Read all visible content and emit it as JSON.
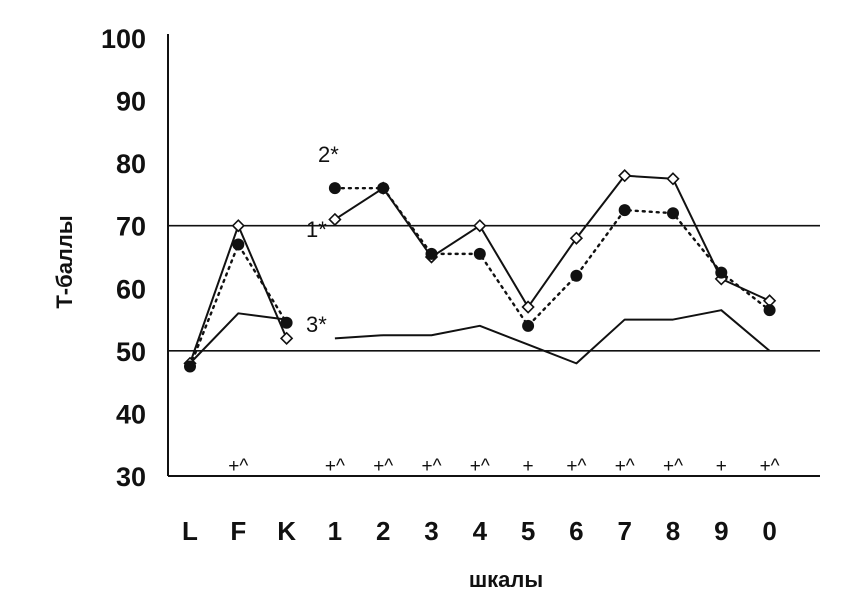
{
  "chart_data": {
    "type": "line",
    "title": "",
    "xlabel": "шкалы",
    "ylabel": "Т-баллы",
    "ylim": [
      30,
      100
    ],
    "yticks": [
      30,
      40,
      50,
      60,
      70,
      80,
      90,
      100
    ],
    "categories": [
      "L",
      "F",
      "K",
      "1",
      "2",
      "3",
      "4",
      "5",
      "6",
      "7",
      "8",
      "9",
      "0"
    ],
    "reference_lines": [
      50,
      70
    ],
    "series": [
      {
        "name": "1*",
        "line_style": "solid",
        "marker": "diamond-open",
        "segments": [
          {
            "x": [
              "L",
              "F",
              "K"
            ],
            "y": [
              48,
              70,
              52
            ]
          },
          {
            "x": [
              "1",
              "2",
              "3",
              "4",
              "5",
              "6",
              "7",
              "8",
              "9",
              "0"
            ],
            "y": [
              71,
              76,
              65,
              70,
              57,
              68,
              78,
              77.5,
              61.5,
              58
            ]
          }
        ]
      },
      {
        "name": "2*",
        "line_style": "dotted",
        "marker": "circle-filled",
        "segments": [
          {
            "x": [
              "L",
              "F",
              "K"
            ],
            "y": [
              47.5,
              67,
              54.5
            ]
          },
          {
            "x": [
              "1",
              "2",
              "3",
              "4",
              "5",
              "6",
              "7",
              "8",
              "9",
              "0"
            ],
            "y": [
              76,
              76,
              65.5,
              65.5,
              54,
              62,
              72.5,
              72,
              62.5,
              56.5
            ]
          }
        ]
      },
      {
        "name": "3*",
        "line_style": "solid",
        "marker": "none",
        "segments": [
          {
            "x": [
              "L",
              "F",
              "K"
            ],
            "y": [
              48,
              56,
              55
            ]
          },
          {
            "x": [
              "1",
              "2",
              "3",
              "4",
              "5",
              "6",
              "7",
              "8",
              "9",
              "0"
            ],
            "y": [
              52,
              52.5,
              52.5,
              54,
              51,
              48,
              55,
              55,
              56.5,
              50
            ]
          }
        ]
      }
    ],
    "significance": [
      {
        "x": "F",
        "label": "+^"
      },
      {
        "x": "1",
        "label": "+^"
      },
      {
        "x": "2",
        "label": "+^"
      },
      {
        "x": "3",
        "label": "+^"
      },
      {
        "x": "4",
        "label": "+^"
      },
      {
        "x": "5",
        "label": "+"
      },
      {
        "x": "6",
        "label": "+^"
      },
      {
        "x": "7",
        "label": "+^"
      },
      {
        "x": "8",
        "label": "+^"
      },
      {
        "x": "9",
        "label": "+"
      },
      {
        "x": "0",
        "label": "+^"
      }
    ]
  }
}
